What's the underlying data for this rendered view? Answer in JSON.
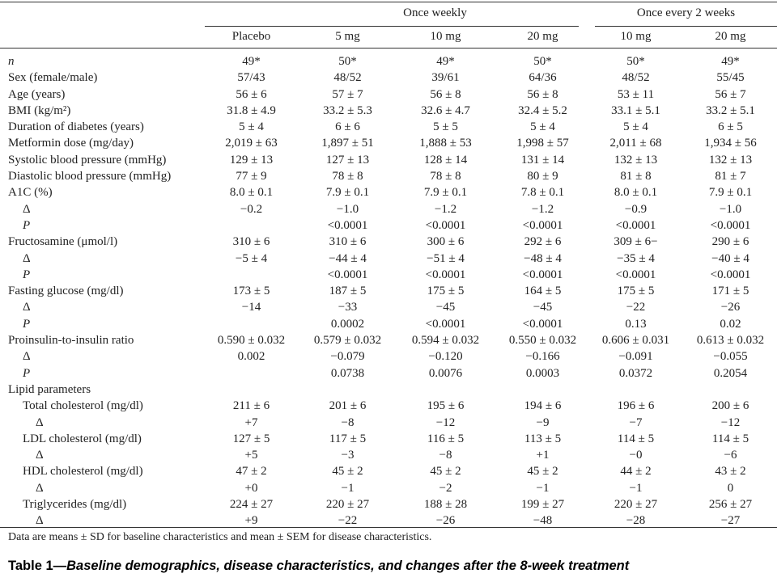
{
  "headers": {
    "group1": "Once weekly",
    "group2": "Once every 2 weeks",
    "columns": [
      "Placebo",
      "5 mg",
      "10 mg",
      "20 mg",
      "10 mg",
      "20 mg"
    ]
  },
  "rows": [
    {
      "label": "n",
      "italic": true,
      "indent": 0,
      "values": [
        "49*",
        "50*",
        "49*",
        "50*",
        "50*",
        "49*"
      ]
    },
    {
      "label": "Sex (female/male)",
      "indent": 0,
      "values": [
        "57/43",
        "48/52",
        "39/61",
        "64/36",
        "48/52",
        "55/45"
      ]
    },
    {
      "label": "Age (years)",
      "indent": 0,
      "values": [
        "56 ± 6",
        "57 ± 7",
        "56 ± 8",
        "56 ± 8",
        "53 ± 11",
        "56 ± 7"
      ]
    },
    {
      "label": "BMI (kg/m²)",
      "indent": 0,
      "values": [
        "31.8 ± 4.9",
        "33.2 ± 5.3",
        "32.6 ± 4.7",
        "32.4 ± 5.2",
        "33.1 ± 5.1",
        "33.2 ± 5.1"
      ]
    },
    {
      "label": "Duration of diabetes (years)",
      "indent": 0,
      "values": [
        "5 ± 4",
        "6 ± 6",
        "5 ± 5",
        "5 ± 4",
        "5 ± 4",
        "6 ± 5"
      ]
    },
    {
      "label": "Metformin dose (mg/day)",
      "indent": 0,
      "values": [
        "2,019 ± 63",
        "1,897 ± 51",
        "1,888 ± 53",
        "1,998 ± 57",
        "2,011 ± 68",
        "1,934 ± 56"
      ]
    },
    {
      "label": "Systolic blood pressure (mmHg)",
      "indent": 0,
      "values": [
        "129 ± 13",
        "127 ± 13",
        "128 ± 14",
        "131 ± 14",
        "132 ± 13",
        "132 ± 13"
      ]
    },
    {
      "label": "Diastolic blood pressure (mmHg)",
      "indent": 0,
      "values": [
        "77 ± 9",
        "78 ± 8",
        "78 ± 8",
        "80 ± 9",
        "81 ± 8",
        "81 ± 7"
      ]
    },
    {
      "label": "A1C (%)",
      "indent": 0,
      "values": [
        "8.0 ± 0.1",
        "7.9 ± 0.1",
        "7.9 ± 0.1",
        "7.8 ± 0.1",
        "8.0 ± 0.1",
        "7.9 ± 0.1"
      ]
    },
    {
      "label": "Δ",
      "indent": 1,
      "values": [
        "−0.2",
        "−1.0",
        "−1.2",
        "−1.2",
        "−0.9",
        "−1.0"
      ]
    },
    {
      "label": "P",
      "italic": true,
      "indent": 1,
      "values": [
        "",
        "<0.0001",
        "<0.0001",
        "<0.0001",
        "<0.0001",
        "<0.0001"
      ]
    },
    {
      "label": "Fructosamine (μmol/l)",
      "indent": 0,
      "values": [
        "310 ± 6",
        "310 ± 6",
        "300 ± 6",
        "292 ± 6",
        "309 ± 6−",
        "290 ± 6"
      ]
    },
    {
      "label": "Δ",
      "indent": 1,
      "values": [
        "−5 ± 4",
        "−44 ± 4",
        "−51 ± 4",
        "−48 ± 4",
        "−35 ± 4",
        "−40 ± 4"
      ]
    },
    {
      "label": "P",
      "italic": true,
      "indent": 1,
      "values": [
        "",
        "<0.0001",
        "<0.0001",
        "<0.0001",
        "<0.0001",
        "<0.0001"
      ]
    },
    {
      "label": "Fasting glucose (mg/dl)",
      "indent": 0,
      "values": [
        "173 ± 5",
        "187 ± 5",
        "175 ± 5",
        "164 ± 5",
        "175 ± 5",
        "171 ± 5"
      ]
    },
    {
      "label": "Δ",
      "indent": 1,
      "values": [
        "−14",
        "−33",
        "−45",
        "−45",
        "−22",
        "−26"
      ]
    },
    {
      "label": "P",
      "italic": true,
      "indent": 1,
      "values": [
        "",
        "0.0002",
        "<0.0001",
        "<0.0001",
        "0.13",
        "0.02"
      ]
    },
    {
      "label": "Proinsulin-to-insulin ratio",
      "indent": 0,
      "values": [
        "0.590 ± 0.032",
        "0.579 ± 0.032",
        "0.594 ± 0.032",
        "0.550 ± 0.032",
        "0.606 ± 0.031",
        "0.613 ± 0.032"
      ]
    },
    {
      "label": "Δ",
      "indent": 1,
      "values": [
        "0.002",
        "−0.079",
        "−0.120",
        "−0.166",
        "−0.091",
        "−0.055"
      ]
    },
    {
      "label": "P",
      "italic": true,
      "indent": 1,
      "values": [
        "",
        "0.0738",
        "0.0076",
        "0.0003",
        "0.0372",
        "0.2054"
      ]
    },
    {
      "label": "Lipid parameters",
      "indent": 0,
      "values": [
        "",
        "",
        "",
        "",
        "",
        ""
      ]
    },
    {
      "label": "Total cholesterol (mg/dl)",
      "indent": 1,
      "values": [
        "211 ± 6",
        "201 ± 6",
        "195 ± 6",
        "194 ± 6",
        "196 ± 6",
        "200 ± 6"
      ]
    },
    {
      "label": "Δ",
      "indent": 2,
      "values": [
        "+7",
        "−8",
        "−12",
        "−9",
        "−7",
        "−12"
      ]
    },
    {
      "label": "LDL cholesterol (mg/dl)",
      "indent": 1,
      "values": [
        "127 ± 5",
        "117 ± 5",
        "116 ± 5",
        "113 ± 5",
        "114 ± 5",
        "114 ± 5"
      ]
    },
    {
      "label": "Δ",
      "indent": 2,
      "values": [
        "+5",
        "−3",
        "−8",
        "+1",
        "−0",
        "−6"
      ]
    },
    {
      "label": "HDL cholesterol (mg/dl)",
      "indent": 1,
      "values": [
        "47 ± 2",
        "45 ± 2",
        "45 ± 2",
        "45 ± 2",
        "44 ± 2",
        "43 ± 2"
      ]
    },
    {
      "label": "Δ",
      "indent": 2,
      "values": [
        "+0",
        "−1",
        "−2",
        "−1",
        "−1",
        "0"
      ]
    },
    {
      "label": "Triglycerides (mg/dl)",
      "indent": 1,
      "values": [
        "224 ± 27",
        "220 ± 27",
        "188 ± 28",
        "199 ± 27",
        "220 ± 27",
        "256 ± 27"
      ]
    },
    {
      "label": "Δ",
      "indent": 2,
      "values": [
        "+9",
        "−22",
        "−26",
        "−48",
        "−28",
        "−27"
      ]
    }
  ],
  "footnote": "Data are means ± SD for baseline characteristics and mean ± SEM for disease characteristics.",
  "caption": {
    "prefix": "Table 1—",
    "title": "Baseline demographics, disease characteristics, and changes after the 8-week treatment"
  }
}
